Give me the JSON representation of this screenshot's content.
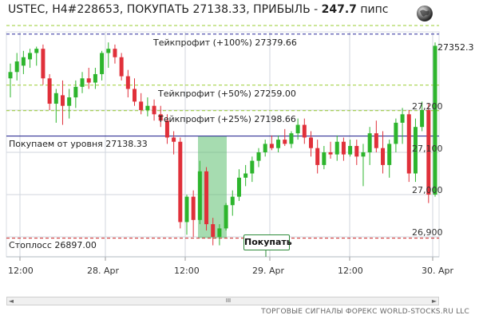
{
  "header": {
    "title_prefix": "USTEC, H4#228653, ПОКУПАТЬ 27138.33, ПРИБЫЛЬ - ",
    "profit": "247.7",
    "unit": " пипс"
  },
  "icons": {
    "globe": "globe-icon"
  },
  "levels": {
    "tp100": "Тейкпрофит (+100%) 27379.66",
    "tp50": "Тейкпрофит (+50%) 27259.00",
    "tp25": "Тейкпрофит (+25%) 27198.66",
    "entry": "Покупаем от уровня 27138.33",
    "stop": "Стоплосс 26897.00"
  },
  "buy_button": "Покупать",
  "price_axis": {
    "current": "27352.3",
    "ticks": [
      "27,200",
      "27,100",
      "27,000",
      "26,900"
    ]
  },
  "time_axis": [
    "12:00",
    "28. Apr",
    "12:00",
    "29. Apr",
    "12:00",
    "30. Apr"
  ],
  "scrollbar": {
    "left": "◄",
    "right": "►",
    "thumb": "III"
  },
  "footer": "ТОРГОВЫЕ СИГНАЛЫ ФОРЕКС WORLD-STOCKS.RU LLC",
  "colors": {
    "up": "#2db52d",
    "down": "#e0303a",
    "entry_line": "#1a1a8a",
    "tp_line": "#9acd32",
    "stop_line": "#cc2222",
    "zone": "#5cc070"
  },
  "chart_data": {
    "type": "candlestick",
    "ylim": [
      26870,
      27400
    ],
    "candles": [
      {
        "o": 27275,
        "h": 27310,
        "l": 27230,
        "c": 27290
      },
      {
        "o": 27290,
        "h": 27335,
        "l": 27270,
        "c": 27315
      },
      {
        "o": 27305,
        "h": 27340,
        "l": 27285,
        "c": 27325
      },
      {
        "o": 27320,
        "h": 27345,
        "l": 27300,
        "c": 27335
      },
      {
        "o": 27335,
        "h": 27350,
        "l": 27305,
        "c": 27345
      },
      {
        "o": 27345,
        "h": 27355,
        "l": 27260,
        "c": 27275
      },
      {
        "o": 27275,
        "h": 27285,
        "l": 27200,
        "c": 27215
      },
      {
        "o": 27215,
        "h": 27250,
        "l": 27170,
        "c": 27240
      },
      {
        "o": 27235,
        "h": 27270,
        "l": 27165,
        "c": 27210
      },
      {
        "o": 27210,
        "h": 27250,
        "l": 27180,
        "c": 27230
      },
      {
        "o": 27230,
        "h": 27270,
        "l": 27205,
        "c": 27255
      },
      {
        "o": 27255,
        "h": 27290,
        "l": 27240,
        "c": 27275
      },
      {
        "o": 27275,
        "h": 27300,
        "l": 27250,
        "c": 27265
      },
      {
        "o": 27265,
        "h": 27300,
        "l": 27250,
        "c": 27285
      },
      {
        "o": 27285,
        "h": 27340,
        "l": 27270,
        "c": 27335
      },
      {
        "o": 27335,
        "h": 27360,
        "l": 27300,
        "c": 27345
      },
      {
        "o": 27345,
        "h": 27355,
        "l": 27310,
        "c": 27325
      },
      {
        "o": 27325,
        "h": 27335,
        "l": 27270,
        "c": 27280
      },
      {
        "o": 27280,
        "h": 27295,
        "l": 27230,
        "c": 27250
      },
      {
        "o": 27250,
        "h": 27275,
        "l": 27210,
        "c": 27220
      },
      {
        "o": 27220,
        "h": 27240,
        "l": 27190,
        "c": 27200
      },
      {
        "o": 27200,
        "h": 27230,
        "l": 27185,
        "c": 27210
      },
      {
        "o": 27210,
        "h": 27225,
        "l": 27175,
        "c": 27190
      },
      {
        "o": 27190,
        "h": 27210,
        "l": 27160,
        "c": 27175
      },
      {
        "o": 27175,
        "h": 27190,
        "l": 27120,
        "c": 27135
      },
      {
        "o": 27135,
        "h": 27150,
        "l": 27095,
        "c": 27125
      },
      {
        "o": 27125,
        "h": 27135,
        "l": 26920,
        "c": 26935
      },
      {
        "o": 26935,
        "h": 27000,
        "l": 26905,
        "c": 26995
      },
      {
        "o": 26995,
        "h": 27010,
        "l": 26900,
        "c": 26940
      },
      {
        "o": 26940,
        "h": 27080,
        "l": 26930,
        "c": 27055
      },
      {
        "o": 27055,
        "h": 27065,
        "l": 26915,
        "c": 26930
      },
      {
        "o": 26930,
        "h": 26945,
        "l": 26880,
        "c": 26900
      },
      {
        "o": 26900,
        "h": 26930,
        "l": 26880,
        "c": 26920
      },
      {
        "o": 26920,
        "h": 26980,
        "l": 26915,
        "c": 26975
      },
      {
        "o": 26975,
        "h": 27010,
        "l": 26950,
        "c": 26995
      },
      {
        "o": 26995,
        "h": 27060,
        "l": 26985,
        "c": 27040
      },
      {
        "o": 27040,
        "h": 27070,
        "l": 27020,
        "c": 27050
      },
      {
        "o": 27050,
        "h": 27090,
        "l": 27030,
        "c": 27080
      },
      {
        "o": 27080,
        "h": 27110,
        "l": 27065,
        "c": 27100
      },
      {
        "o": 27100,
        "h": 27130,
        "l": 27090,
        "c": 27120
      },
      {
        "o": 27120,
        "h": 27140,
        "l": 27105,
        "c": 27110
      },
      {
        "o": 27110,
        "h": 27140,
        "l": 27100,
        "c": 27130
      },
      {
        "o": 27130,
        "h": 27155,
        "l": 27115,
        "c": 27120
      },
      {
        "o": 27120,
        "h": 27150,
        "l": 27110,
        "c": 27145
      },
      {
        "o": 27145,
        "h": 27180,
        "l": 27130,
        "c": 27165
      },
      {
        "o": 27165,
        "h": 27180,
        "l": 27120,
        "c": 27135
      },
      {
        "o": 27135,
        "h": 27150,
        "l": 27090,
        "c": 27110
      },
      {
        "o": 27110,
        "h": 27130,
        "l": 27050,
        "c": 27070
      },
      {
        "o": 27070,
        "h": 27115,
        "l": 27060,
        "c": 27100
      },
      {
        "o": 27100,
        "h": 27125,
        "l": 27085,
        "c": 27095
      },
      {
        "o": 27095,
        "h": 27140,
        "l": 27080,
        "c": 27125
      },
      {
        "o": 27125,
        "h": 27135,
        "l": 27080,
        "c": 27095
      },
      {
        "o": 27095,
        "h": 27130,
        "l": 27090,
        "c": 27115
      },
      {
        "o": 27115,
        "h": 27130,
        "l": 27070,
        "c": 27090
      },
      {
        "o": 27090,
        "h": 27120,
        "l": 27020,
        "c": 27100
      },
      {
        "o": 27100,
        "h": 27160,
        "l": 27070,
        "c": 27145
      },
      {
        "o": 27145,
        "h": 27175,
        "l": 27100,
        "c": 27110
      },
      {
        "o": 27110,
        "h": 27150,
        "l": 27050,
        "c": 27070
      },
      {
        "o": 27070,
        "h": 27130,
        "l": 27040,
        "c": 27120
      },
      {
        "o": 27120,
        "h": 27180,
        "l": 27100,
        "c": 27170
      },
      {
        "o": 27170,
        "h": 27205,
        "l": 27120,
        "c": 27190
      },
      {
        "o": 27190,
        "h": 27200,
        "l": 27030,
        "c": 27050
      },
      {
        "o": 27050,
        "h": 27180,
        "l": 27030,
        "c": 27160
      },
      {
        "o": 27160,
        "h": 27220,
        "l": 27150,
        "c": 27200
      },
      {
        "o": 27200,
        "h": 27215,
        "l": 26980,
        "c": 27000
      },
      {
        "o": 27000,
        "h": 27360,
        "l": 26995,
        "c": 27352
      }
    ]
  }
}
